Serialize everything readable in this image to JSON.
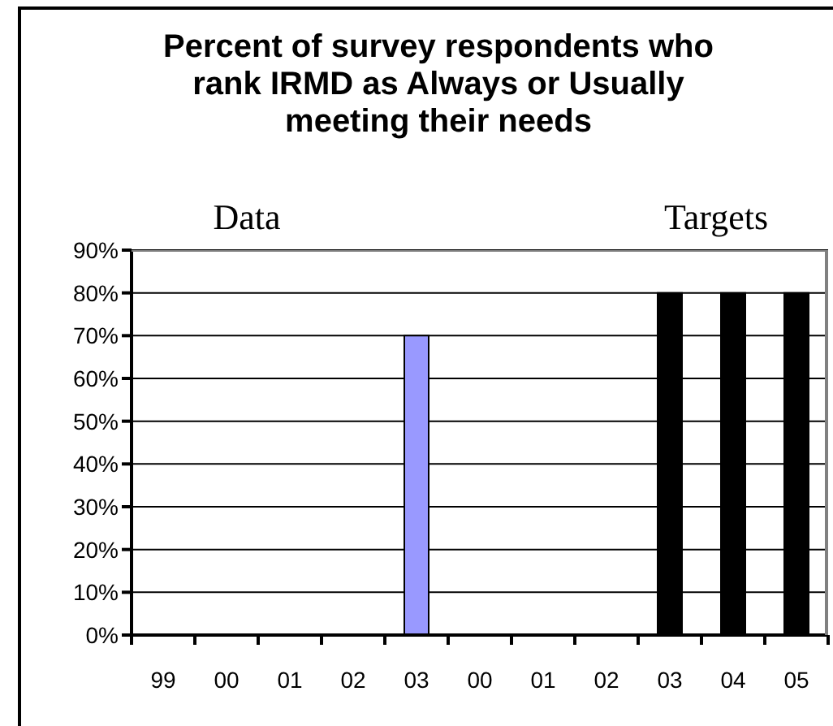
{
  "chart_data": {
    "type": "bar",
    "title": "Percent of survey respondents who rank IRMD as Always or Usually meeting their needs",
    "categories": [
      "99",
      "00",
      "01",
      "02",
      "03",
      "00",
      "01",
      "02",
      "03",
      "04",
      "05"
    ],
    "values": [
      null,
      null,
      null,
      null,
      70,
      null,
      null,
      null,
      80,
      80,
      80
    ],
    "colors": [
      "#9999ff",
      "#9999ff",
      "#9999ff",
      "#9999ff",
      "#9999ff",
      "#000000",
      "#000000",
      "#000000",
      "#000000",
      "#000000",
      "#000000"
    ],
    "ylim": [
      0,
      90
    ],
    "yticks": [
      {
        "value": 0,
        "label": "0%"
      },
      {
        "value": 10,
        "label": "10%"
      },
      {
        "value": 20,
        "label": "20%"
      },
      {
        "value": 30,
        "label": "30%"
      },
      {
        "value": 40,
        "label": "40%"
      },
      {
        "value": 50,
        "label": "50%"
      },
      {
        "value": 60,
        "label": "60%"
      },
      {
        "value": 70,
        "label": "70%"
      },
      {
        "value": 80,
        "label": "80%"
      },
      {
        "value": 90,
        "label": "90%"
      }
    ],
    "grid": "y",
    "legend": false,
    "annotations": [
      "Data",
      "Targets"
    ]
  }
}
